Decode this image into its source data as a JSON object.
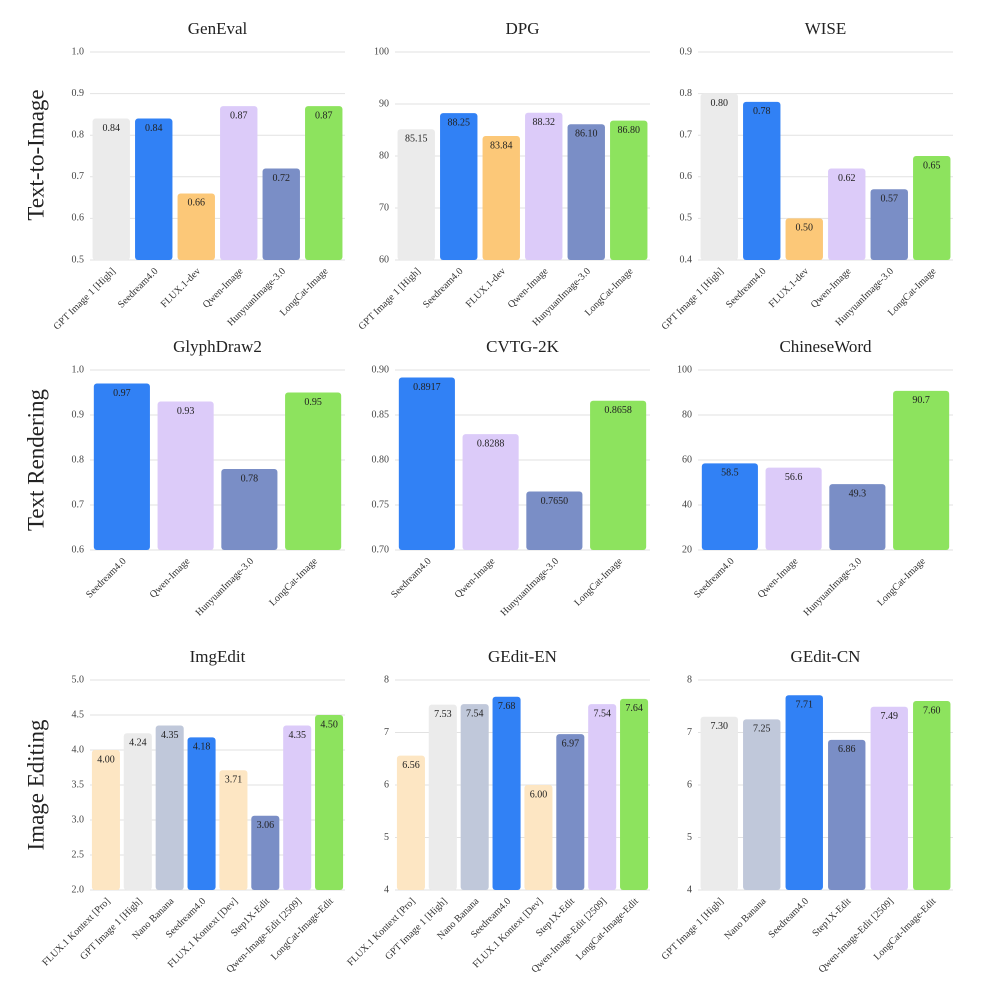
{
  "row_labels": [
    "Text-to-Image",
    "Text Rendering",
    "Image Editing"
  ],
  "chart_data": [
    {
      "type": "bar",
      "title": "GenEval",
      "categories": [
        "GPT Image 1 [High]",
        "Seedream4.0",
        "FLUX.1-dev",
        "Qwen-Image",
        "HunyuanImage-3.0",
        "LongCat-Image"
      ],
      "values": [
        0.84,
        0.84,
        0.66,
        0.87,
        0.72,
        0.87
      ],
      "value_labels": [
        "0.84",
        "0.84",
        "0.66",
        "0.87",
        "0.72",
        "0.87"
      ],
      "colors": [
        "#ebebeb",
        "#3181f5",
        "#fcc878",
        "#dccbf9",
        "#7a8ec6",
        "#8de35e"
      ],
      "ylim": [
        0.5,
        1.0
      ],
      "yticks": [
        0.5,
        0.6,
        0.7,
        0.8,
        0.9,
        {
          "value": 1.0,
          "label": "1.0"
        }
      ],
      "grid": true
    },
    {
      "type": "bar",
      "title": "DPG",
      "categories": [
        "GPT Image 1 [High]",
        "Seedream4.0",
        "FLUX.1-dev",
        "Qwen-Image",
        "HunyuanImage-3.0",
        "LongCat-Image"
      ],
      "values": [
        85.15,
        88.25,
        83.84,
        88.32,
        86.1,
        86.8
      ],
      "value_labels": [
        "85.15",
        "88.25",
        "83.84",
        "88.32",
        "86.10",
        "86.80"
      ],
      "colors": [
        "#ebebeb",
        "#3181f5",
        "#fcc878",
        "#dccbf9",
        "#7a8ec6",
        "#8de35e"
      ],
      "ylim": [
        60,
        100
      ],
      "yticks": [
        60,
        70,
        80,
        90,
        100
      ],
      "grid": true
    },
    {
      "type": "bar",
      "title": "WISE",
      "categories": [
        "GPT Image 1 [High]",
        "Seedream4.0",
        "FLUX.1-dev",
        "Qwen-Image",
        "HunyuanImage-3.0",
        "LongCat-Image"
      ],
      "values": [
        0.8,
        0.78,
        0.5,
        0.62,
        0.57,
        0.65
      ],
      "value_labels": [
        "0.80",
        "0.78",
        "0.50",
        "0.62",
        "0.57",
        "0.65"
      ],
      "colors": [
        "#ebebeb",
        "#3181f5",
        "#fcc878",
        "#dccbf9",
        "#7a8ec6",
        "#8de35e"
      ],
      "ylim": [
        0.4,
        0.9
      ],
      "yticks": [
        0.4,
        0.5,
        0.6,
        0.7,
        0.8,
        0.9
      ],
      "grid": true
    },
    {
      "type": "bar",
      "title": "GlyphDraw2",
      "categories": [
        "Seedream4.0",
        "Qwen-Image",
        "HunyuanImage-3.0",
        "LongCat-Image"
      ],
      "values": [
        0.97,
        0.93,
        0.78,
        0.95
      ],
      "value_labels": [
        "0.97",
        "0.93",
        "0.78",
        "0.95"
      ],
      "colors": [
        "#3181f5",
        "#dccbf9",
        "#7a8ec6",
        "#8de35e"
      ],
      "ylim": [
        0.6,
        1.0
      ],
      "yticks": [
        0.6,
        0.7,
        0.8,
        0.9,
        {
          "value": 1.0,
          "label": "1.0"
        }
      ],
      "grid": true
    },
    {
      "type": "bar",
      "title": "CVTG-2K",
      "categories": [
        "Seedream4.0",
        "Qwen-Image",
        "HunyuanImage-3.0",
        "LongCat-Image"
      ],
      "values": [
        0.8917,
        0.8288,
        0.765,
        0.8658
      ],
      "value_labels": [
        "0.8917",
        "0.8288",
        "0.7650",
        "0.8658"
      ],
      "colors": [
        "#3181f5",
        "#dccbf9",
        "#7a8ec6",
        "#8de35e"
      ],
      "ylim": [
        0.7,
        0.9
      ],
      "yticks": [
        {
          "value": 0.7,
          "label": "0.70"
        },
        0.75,
        {
          "value": 0.8,
          "label": "0.80"
        },
        0.85,
        {
          "value": 0.9,
          "label": "0.90"
        }
      ],
      "grid": true
    },
    {
      "type": "bar",
      "title": "ChineseWord",
      "categories": [
        "Seedream4.0",
        "Qwen-Image",
        "HunyuanImage-3.0",
        "LongCat-Image"
      ],
      "values": [
        58.5,
        56.6,
        49.3,
        90.7
      ],
      "value_labels": [
        "58.5",
        "56.6",
        "49.3",
        "90.7"
      ],
      "colors": [
        "#3181f5",
        "#dccbf9",
        "#7a8ec6",
        "#8de35e"
      ],
      "ylim": [
        20,
        100
      ],
      "yticks": [
        20,
        40,
        60,
        80,
        100
      ],
      "grid": true
    },
    {
      "type": "bar",
      "title": "ImgEdit",
      "categories": [
        "FLUX.1 Kontext [Pro]",
        "GPT Image 1 [High]",
        "Nano Banana",
        "Seedream4.0",
        "FLUX.1 Kontext [Dev]",
        "Step1X-Edit",
        "Qwen-Image-Edit [2509]",
        "LongCat-Image-Edit"
      ],
      "values": [
        4.0,
        4.24,
        4.35,
        4.18,
        3.71,
        3.06,
        4.35,
        4.5
      ],
      "value_labels": [
        "4.00",
        "4.24",
        "4.35",
        "4.18",
        "3.71",
        "3.06",
        "4.35",
        "4.50"
      ],
      "colors": [
        "#fde6c3",
        "#ebebeb",
        "#c0c8da",
        "#3181f5",
        "#fde6c3",
        "#7a8ec6",
        "#dccbf9",
        "#8de35e"
      ],
      "ylim": [
        2.0,
        5.0
      ],
      "yticks": [
        {
          "value": 2,
          "label": "2.0"
        },
        2.5,
        {
          "value": 3,
          "label": "3.0"
        },
        3.5,
        {
          "value": 4,
          "label": "4.0"
        },
        4.5,
        {
          "value": 5,
          "label": "5.0"
        }
      ],
      "grid": true
    },
    {
      "type": "bar",
      "title": "GEdit-EN",
      "categories": [
        "FLUX.1 Kontext [Pro]",
        "GPT Image 1 [High]",
        "Nano Banana",
        "Seedream4.0",
        "FLUX.1 Kontext [Dev]",
        "Step1X-Edit",
        "Qwen-Image-Edit [2509]",
        "LongCat-Image-Edit"
      ],
      "values": [
        6.56,
        7.53,
        7.54,
        7.68,
        6.0,
        6.97,
        7.54,
        7.64
      ],
      "value_labels": [
        "6.56",
        "7.53",
        "7.54",
        "7.68",
        "6.00",
        "6.97",
        "7.54",
        "7.64"
      ],
      "colors": [
        "#fde6c3",
        "#ebebeb",
        "#c0c8da",
        "#3181f5",
        "#fde6c3",
        "#7a8ec6",
        "#dccbf9",
        "#8de35e"
      ],
      "ylim": [
        4,
        8
      ],
      "yticks": [
        4,
        5,
        6,
        7,
        8
      ],
      "grid": true
    },
    {
      "type": "bar",
      "title": "GEdit-CN",
      "categories": [
        "GPT Image 1 [High]",
        "Nano Banana",
        "Seedream4.0",
        "Step1X-Edit",
        "Qwen-Image-Edit [2509]",
        "LongCat-Image-Edit"
      ],
      "values": [
        7.3,
        7.25,
        7.71,
        6.86,
        7.49,
        7.6
      ],
      "value_labels": [
        "7.30",
        "7.25",
        "7.71",
        "6.86",
        "7.49",
        "7.60"
      ],
      "colors": [
        "#ebebeb",
        "#c0c8da",
        "#3181f5",
        "#7a8ec6",
        "#dccbf9",
        "#8de35e"
      ],
      "ylim": [
        4,
        8
      ],
      "yticks": [
        4,
        5,
        6,
        7,
        8
      ],
      "grid": true
    }
  ]
}
